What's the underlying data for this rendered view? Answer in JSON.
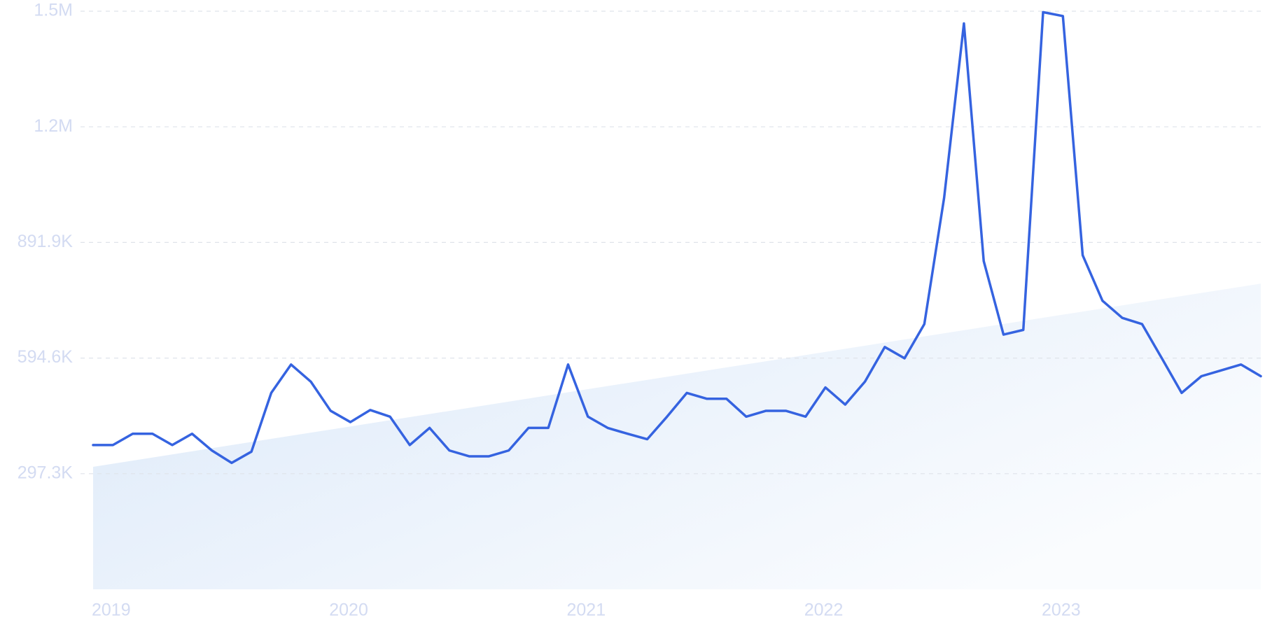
{
  "chart_data": {
    "type": "line",
    "categories": [
      "2019",
      null,
      null,
      null,
      null,
      null,
      null,
      null,
      null,
      null,
      null,
      null,
      "2020",
      null,
      null,
      null,
      null,
      null,
      null,
      null,
      null,
      null,
      null,
      null,
      "2021",
      null,
      null,
      null,
      null,
      null,
      null,
      null,
      null,
      null,
      null,
      null,
      "2022",
      null,
      null,
      null,
      null,
      null,
      null,
      null,
      null,
      null,
      null,
      null,
      "2023",
      null,
      null,
      null,
      null,
      null,
      null,
      null,
      null,
      null,
      null,
      null
    ],
    "series": [
      {
        "color": "#3563e0",
        "values": [
          371000,
          371000,
          400000,
          400000,
          371000,
          400000,
          357000,
          325000,
          354000,
          505000,
          578000,
          534000,
          459000,
          430000,
          461000,
          444000,
          371000,
          415000,
          357000,
          342000,
          342000,
          357000,
          415000,
          415000,
          578000,
          444000,
          415000,
          400000,
          386000,
          444000,
          505000,
          490000,
          490000,
          444000,
          459000,
          459000,
          444000,
          519000,
          475000,
          534000,
          623000,
          594000,
          682000,
          1007000,
          1455000,
          844000,
          655000,
          667000,
          1484000,
          1474000,
          859000,
          742000,
          698000,
          682000,
          594000,
          505000,
          548000,
          563000,
          578000,
          548000
        ]
      }
    ],
    "trend": [
      315000,
      786000
    ],
    "trend_color": "#dce9f9",
    "ylim": [
      0,
      1486500
    ],
    "yticks": [
      {
        "value": 297300,
        "label": "297.3K"
      },
      {
        "value": 594600,
        "label": "594.6K"
      },
      {
        "value": 891900,
        "label": "891.9K"
      },
      {
        "value": 1189200,
        "label": "1.2M"
      },
      {
        "value": 1486500,
        "label": "1.5M"
      }
    ],
    "grid": true
  }
}
